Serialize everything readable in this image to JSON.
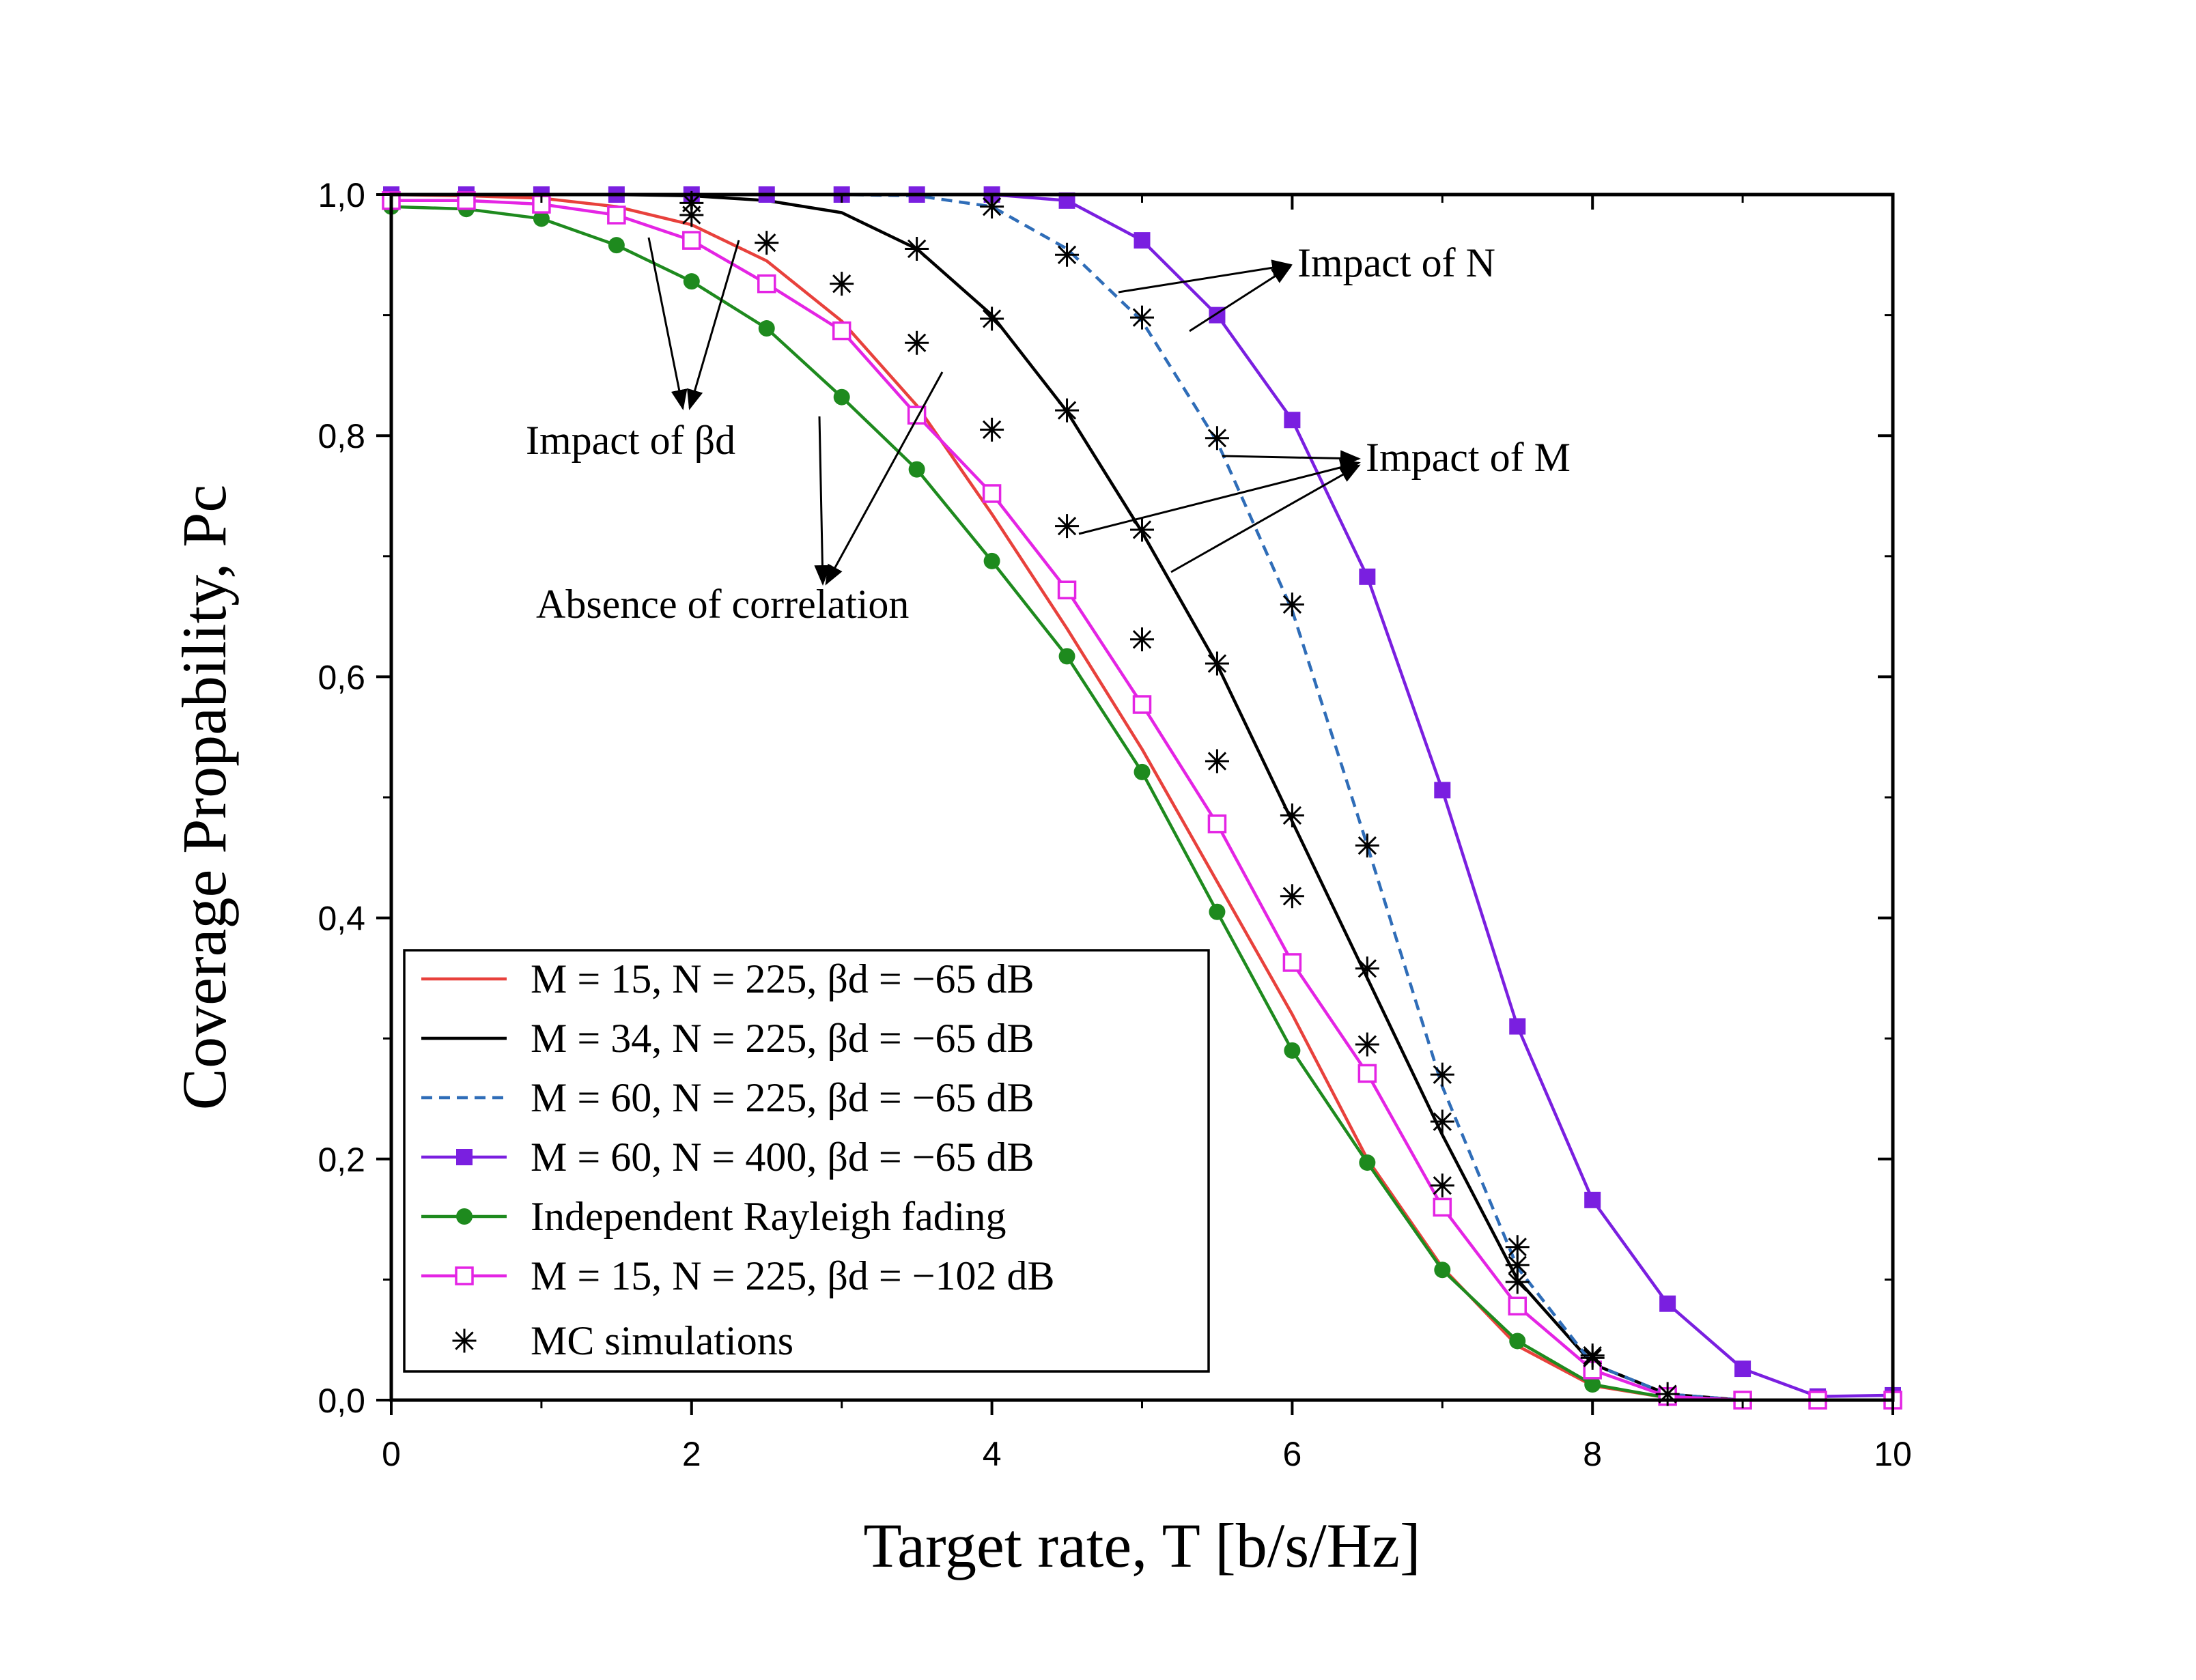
{
  "chart_data": {
    "type": "line",
    "xlabel": "Target rate, T [b/s/Hz]",
    "ylabel": "Coverage Propability, Pc",
    "xlim": [
      0,
      10
    ],
    "ylim": [
      0,
      1
    ],
    "xticks": [
      0,
      2,
      4,
      6,
      8,
      10
    ],
    "xtick_labels": [
      "0",
      "2",
      "4",
      "6",
      "8",
      "10"
    ],
    "yticks": [
      0,
      0.2,
      0.4,
      0.6,
      0.8,
      1.0
    ],
    "ytick_labels": [
      "0,0",
      "0,2",
      "0,4",
      "0,6",
      "0,8",
      "1,0"
    ],
    "legend_position": "bottom-left",
    "series": [
      {
        "name": "M = 15, N = 225, βd = −65 dB",
        "color": "#e8413c",
        "style": "solid",
        "marker": "none",
        "x": [
          0,
          0.5,
          1,
          1.5,
          2,
          2.5,
          3,
          3.5,
          4,
          4.5,
          5,
          5.5,
          6,
          6.5,
          7,
          7.5,
          8,
          8.5,
          9,
          9.5,
          10
        ],
        "y": [
          1.0,
          0.999,
          0.997,
          0.99,
          0.975,
          0.945,
          0.895,
          0.825,
          0.735,
          0.64,
          0.54,
          0.43,
          0.32,
          0.2,
          0.11,
          0.045,
          0.012,
          0.002,
          0.0,
          0.0,
          0.0
        ]
      },
      {
        "name": "M = 34, N = 225, βd = −65 dB",
        "color": "#000000",
        "style": "solid",
        "marker": "none",
        "x": [
          0,
          0.5,
          1,
          1.5,
          2,
          2.5,
          3,
          3.5,
          4,
          4.5,
          5,
          5.5,
          6,
          6.5,
          7,
          7.5,
          8,
          8.5,
          9,
          9.5,
          10
        ],
        "y": [
          1.0,
          1.0,
          1.0,
          1.0,
          0.999,
          0.995,
          0.985,
          0.955,
          0.9,
          0.82,
          0.72,
          0.61,
          0.48,
          0.35,
          0.22,
          0.1,
          0.03,
          0.005,
          0.0,
          0.0,
          0.0
        ]
      },
      {
        "name": "M = 60, N = 225, βd = −65 dB",
        "color": "#2f6db8",
        "style": "dashed",
        "marker": "none",
        "x": [
          0,
          0.5,
          1,
          1.5,
          2,
          2.5,
          3,
          3.5,
          4,
          4.5,
          5,
          5.5,
          6,
          6.5,
          7,
          7.5,
          8,
          8.5,
          9,
          9.5,
          10
        ],
        "y": [
          1.0,
          1.0,
          1.0,
          1.0,
          1.0,
          1.0,
          1.0,
          0.999,
          0.99,
          0.955,
          0.895,
          0.795,
          0.655,
          0.46,
          0.26,
          0.11,
          0.03,
          0.005,
          0.0,
          0.0,
          0.0
        ]
      },
      {
        "name": "M = 60, N = 400, βd = −65 dB",
        "color": "#7a1fe0",
        "style": "solid",
        "marker": "filled-square",
        "x": [
          0,
          0.5,
          1,
          1.5,
          2,
          2.5,
          3,
          3.5,
          4,
          4.5,
          5,
          5.5,
          6,
          6.5,
          7,
          7.5,
          8,
          8.5,
          9,
          9.5,
          10
        ],
        "y": [
          1.0,
          1.0,
          1.0,
          1.0,
          1.0,
          1.0,
          1.0,
          1.0,
          1.0,
          0.995,
          0.962,
          0.9,
          0.813,
          0.683,
          0.506,
          0.31,
          0.166,
          0.08,
          0.026,
          0.003,
          0.004
        ]
      },
      {
        "name": "Independent Rayleigh fading",
        "color": "#1e8a1e",
        "style": "solid",
        "marker": "filled-circle",
        "x": [
          0,
          0.5,
          1,
          1.5,
          2,
          2.5,
          3,
          3.5,
          4,
          4.5,
          5,
          5.5,
          6,
          6.5,
          7,
          7.5,
          8,
          8.5,
          9,
          9.5,
          10
        ],
        "y": [
          0.99,
          0.988,
          0.98,
          0.958,
          0.928,
          0.889,
          0.832,
          0.772,
          0.696,
          0.617,
          0.521,
          0.405,
          0.29,
          0.197,
          0.108,
          0.049,
          0.013,
          0.002,
          0.0,
          0.0,
          0.0
        ]
      },
      {
        "name": "M = 15, N = 225, βd = −102 dB",
        "color": "#e424e4",
        "style": "solid",
        "marker": "open-square",
        "x": [
          0,
          0.5,
          1,
          1.5,
          2,
          2.5,
          3,
          3.5,
          4,
          4.5,
          5,
          5.5,
          6,
          6.5,
          7,
          7.5,
          8,
          8.5,
          9,
          9.5,
          10
        ],
        "y": [
          0.995,
          0.995,
          0.992,
          0.983,
          0.962,
          0.926,
          0.887,
          0.817,
          0.752,
          0.672,
          0.577,
          0.478,
          0.363,
          0.271,
          0.16,
          0.078,
          0.025,
          0.003,
          0.0,
          0.0,
          0.0
        ]
      },
      {
        "name": "MC simulations",
        "color": "#000000",
        "style": "none",
        "marker": "asterisk",
        "x": [
          2,
          2.5,
          3,
          3.5,
          4,
          4.5,
          5,
          5.5,
          6,
          6.5,
          7,
          7.5,
          8,
          8.5,
          3.5,
          4,
          4.5,
          5,
          5.5,
          6,
          6.5,
          7,
          7.5,
          8,
          2,
          4,
          4.5,
          5,
          5.5,
          6,
          6.5,
          7,
          7.5
        ],
        "y": [
          0.993,
          0.96,
          0.926,
          0.877,
          0.805,
          0.725,
          0.631,
          0.53,
          0.418,
          0.295,
          0.178,
          0.098,
          0.035,
          0.005,
          0.955,
          0.897,
          0.821,
          0.722,
          0.611,
          0.485,
          0.358,
          0.231,
          0.112,
          0.037,
          0.983,
          0.99,
          0.95,
          0.898,
          0.798,
          0.66,
          0.46,
          0.27,
          0.127
        ]
      }
    ],
    "annotations": [
      {
        "text": "Impact of N"
      },
      {
        "text": "Impact of M"
      },
      {
        "text": "Impact of βd"
      },
      {
        "text": "Absence of correlation"
      }
    ]
  }
}
